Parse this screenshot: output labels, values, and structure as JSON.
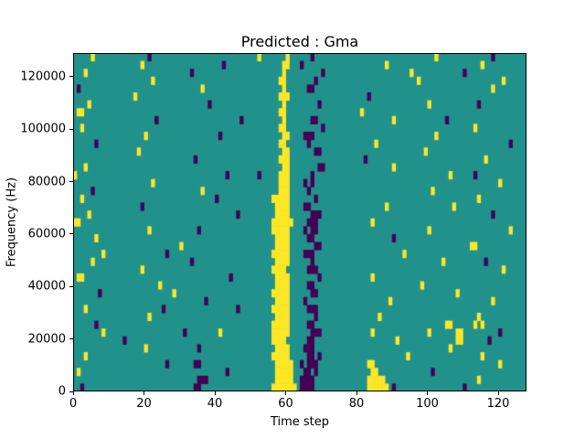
{
  "figure": {
    "background": "#ffffff"
  },
  "chart_data": {
    "type": "heatmap",
    "title": "Predicted : Gma",
    "xlabel": "Time step",
    "ylabel": "Frequency (Hz)",
    "x_range": [
      0,
      128
    ],
    "y_range": [
      0,
      129000
    ],
    "x_ticks": [
      0,
      20,
      40,
      60,
      80,
      100,
      120
    ],
    "y_ticks": [
      0,
      20000,
      40000,
      60000,
      80000,
      100000,
      120000
    ],
    "colormap": "viridis",
    "legend": "none",
    "grid_lines": false,
    "rows": 43,
    "cols": 128,
    "cell_classes": {
      ".": "mid",
      "y": "high",
      "p": "low"
    },
    "colors": {
      "mid": "#21918c",
      "high": "#fde725",
      "low": "#440154"
    },
    "cells": [
      [
        ".....y..........",
        ".....p..........",
        "................",
        "....y.......y...",
        "...p............",
        "................",
        "......y.........",
        "......p........."
      ],
      [
        "................",
        "...y............",
        "..........p.....",
        "...........yy...",
        "p...............",
        "........y.......",
        "................",
        "...y............"
      ],
      [
        "...y............",
        "................",
        ".p..............",
        "...........y....",
        "......p.........",
        "...............y",
        "..............p.",
        "................"
      ],
      [
        "................",
        "......y.........",
        "................",
        "..........yy....",
        "....p...........",
        "................",
        ".y..............",
        ".........y......"
      ],
      [
        ".p..............",
        "................",
        "....y...........",
        "...........y....",
        "..pp............",
        "................",
        "................",
        "......y........."
      ],
      [
        "................",
        ".y..............",
        "................",
        "..........yyy...",
        "................",
        "...p............",
        "................",
        "................"
      ],
      [
        "....y...........",
        "................",
        "......p.........",
        "...........y....",
        ".....p..........",
        "................",
        "....y...........",
        "..p............."
      ],
      [
        ".yy.............",
        "................",
        "................",
        "..........yy....",
        "................",
        ".y..............",
        "................",
        "................"
      ],
      [
        "................",
        ".......p........",
        "...............p",
        "...........y....",
        "...pp...........",
        "..........y.....",
        ".........p......",
        "................"
      ],
      [
        "..y.............",
        "................",
        "................",
        "..........yy....",
        "......p.........",
        "................",
        "................",
        ".y.............."
      ],
      [
        "................",
        "....y...........",
        ".........p......",
        "...........yy...",
        ".ppp............",
        "................",
        "......y.........",
        "................"
      ],
      [
        "......p.........",
        "................",
        "................",
        "..........yy....",
        "..p.............",
        ".....y..........",
        "................",
        "...........p...."
      ],
      [
        "................",
        "..y.............",
        "................",
        "...........yy...",
        "....pp..........",
        "................",
        "...y............",
        "................"
      ],
      [
        "................",
        "................",
        "..p.............",
        "..........yyy...",
        "................",
        "..p.............",
        "................",
        "....y..........."
      ],
      [
        "...y............",
        "................",
        "................",
        "...........yy...",
        ".....pp.........",
        "..........y.....",
        "................",
        "................"
      ],
      [
        "y...............",
        "................",
        "...........p....",
        "....p.....yyy...",
        "...p............",
        "................",
        "..........y.....",
        ".p.............."
      ],
      [
        "................",
        "......y.........",
        "................",
        "..........yyy...",
        ".p.p............",
        "................",
        "................",
        "........y......."
      ],
      [
        ".....p..........",
        "................",
        "....y...........",
        "..........yyy...",
        "..p.............",
        "................",
        ".....y..........",
        "................"
      ],
      [
        "..y.............",
        "................",
        "........p.......",
        "........yyyyy...",
        "....p...........",
        "................",
        "................",
        "..y............."
      ],
      [
        "................",
        "...p............",
        "................",
        ".........yyyy...",
        ".pp.............",
        "........y.......",
        "...........y....",
        "................"
      ],
      [
        "....y...........",
        "................",
        "..............p.",
        ".........yyyy...",
        "...ppp..........",
        "................",
        "................",
        "......p........."
      ],
      [
        "yy..............",
        "................",
        "................",
        "........yyyyyy..",
        "..ppp...........",
        "....y...........",
        "................",
        "................"
      ],
      [
        "................",
        ".....y..........",
        "...p............",
        "........yyyyy...",
        ".p.pp...........",
        "................",
        "....y...........",
        "...........y...."
      ],
      [
        "......y.........",
        "................",
        "................",
        ".........yyyy...",
        "..pp............",
        "..........p.....",
        "................",
        "................"
      ],
      [
        "................",
        "..............y.",
        "................",
        ".........yyyy...",
        "....pp..........",
        "................",
        "................",
        "yy.............."
      ],
      [
        "........y.......",
        "..........p.....",
        "................",
        "........yyyyy...",
        ".ppp............",
        ".............y..",
        "................",
        "................"
      ],
      [
        ".....y..........",
        "................",
        ".p..............",
        ".........yyyy...",
        "...p............",
        "................",
        "........y.......",
        "....p..........."
      ],
      [
        "................",
        "...y............",
        "................",
        "........yyyy....",
        "..ppp...........",
        "................",
        "................",
        ".........y......"
      ],
      [
        ".yy.............",
        "................",
        "............p...",
        ".........yyyy...",
        ".....p..........",
        "....y...........",
        "................",
        "................"
      ],
      [
        "................",
        "........y.......",
        "................",
        ".........yyyy...",
        "..pp............",
        "................",
        "..y.............",
        "................"
      ],
      [
        ".......p........",
        "............y...",
        "................",
        "........yyyyy...",
        "...pp...........",
        "................",
        "............y...",
        "................"
      ],
      [
        "................",
        "................",
        ".....p..........",
        ".........yyyy...",
        ".p..............",
        ".........y......",
        "................",
        "......y........."
      ],
      [
        "...y............",
        ".........p......",
        "..............p.",
        "........yyyyy...",
        "..ppp...........",
        "................",
        "................",
        "................"
      ],
      [
        "................",
        ".....y..........",
        "................",
        ".........yyyy...",
        "....p...........",
        "......y.........",
        "................",
        "..y............."
      ],
      [
        "......p.........",
        "................",
        "................",
        "........yyyyy...",
        "..pp............",
        "................",
        ".........yy.....",
        ".y.y............"
      ],
      [
        "........y.......",
        "...............p",
        ".........y......",
        "........yyyyy...",
        "...ppp..........",
        "....y...........",
        "....y.......yy..",
        "........p......."
      ],
      [
        "..............p.",
        "................",
        "................",
        "........yyyy....",
        "..pp............",
        "...........y....",
        "............yy..",
        ".....p.........."
      ],
      [
        "................",
        "....y...........",
        "...p............",
        ".........yyyy...",
        ".ppp............",
        "................",
        "..........y.....",
        "................"
      ],
      [
        "...y............",
        "................",
        "................",
        "........yyyyy...",
        "..pp.p..........",
        "..............y.",
        "................",
        "...y............"
      ],
      [
        "................",
        "..........p.....",
        "..pp............",
        ".........yyyyy..",
        "p.ppp...........",
        "...yy...........",
        "................",
        "........y......."
      ],
      [
        ".y..............",
        "................",
        "...........p....",
        ".........yyyyy..",
        ".pp.p...........",
        "....yy..........",
        ".....p..........",
        "................"
      ],
      [
        "................",
        "................",
        "...ppp..........",
        ".........yyyyy..",
        "pppp............",
        "...yyyyy........",
        "................",
        "..y............."
      ],
      [
        "..p.............",
        "................",
        "..pp............",
        "........yyyyyyy.",
        "pppp............",
        "...yyyyyy.p.....",
        "..............p.",
        "................"
      ]
    ]
  }
}
